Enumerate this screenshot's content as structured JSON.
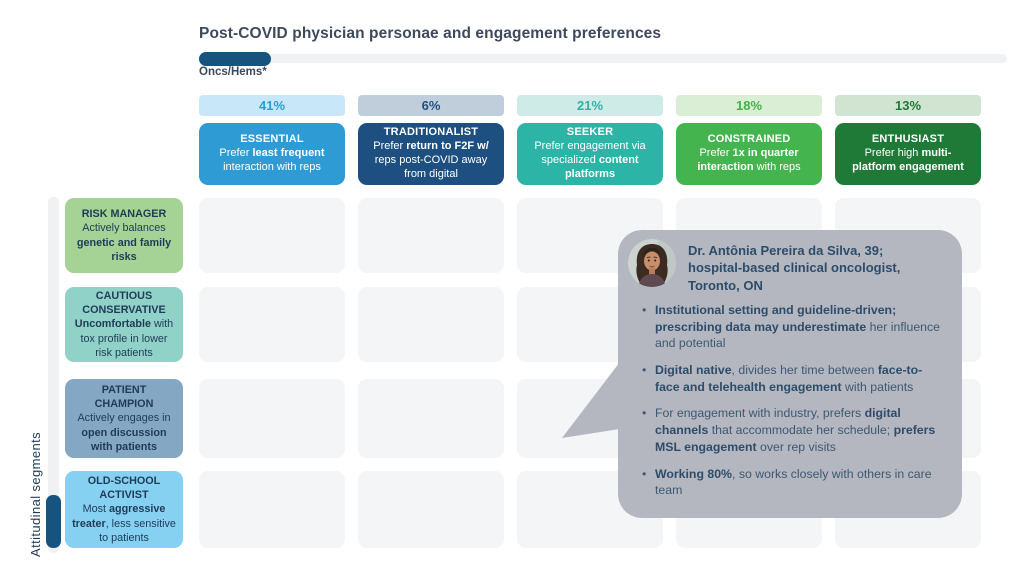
{
  "title": "Post-COVID physician personae and engagement preferences",
  "specialty_tab": {
    "label": "Oncs/Hems*"
  },
  "y_axis": {
    "label": "Attitudinal segments"
  },
  "personas": {
    "columns": [
      {
        "key": "essential",
        "percent": "41%",
        "name": "ESSENTIAL",
        "pref": [
          [
            "Prefer ",
            0
          ],
          [
            "least frequent",
            1
          ],
          [
            " interaction with reps",
            0
          ]
        ],
        "pill_bg": "#c8e7f9",
        "pill_text": "#2f9bd4",
        "card_bg": "#2f9bd4"
      },
      {
        "key": "traditionalist",
        "percent": "6%",
        "name": "TRADITIONALIST",
        "pref": [
          [
            "Prefer ",
            0
          ],
          [
            "return to F2F w/",
            1
          ],
          [
            " reps post-COVID away from digital",
            0
          ]
        ],
        "pill_bg": "#c0cdda",
        "pill_text": "#1d5080",
        "card_bg": "#1d5080"
      },
      {
        "key": "seeker",
        "percent": "21%",
        "name": "SEEKER",
        "pref": [
          [
            "Prefer engagement via specialized ",
            0
          ],
          [
            "content platforms",
            1
          ]
        ],
        "pill_bg": "#cfebe7",
        "pill_text": "#2cb4a7",
        "card_bg": "#2cb4a7"
      },
      {
        "key": "constrained",
        "percent": "18%",
        "name": "CONSTRAINED",
        "pref": [
          [
            "Prefer ",
            0
          ],
          [
            "1x in quarter interaction",
            1
          ],
          [
            " with reps",
            0
          ]
        ],
        "pill_bg": "#d9eed4",
        "pill_text": "#43b14c",
        "card_bg": "#44b54e"
      },
      {
        "key": "enthusiast",
        "percent": "13%",
        "name": "ENTHUSIAST",
        "pref": [
          [
            "Prefer high ",
            0
          ],
          [
            "multi-platform engagement",
            1
          ]
        ],
        "pill_bg": "#d0e4d1",
        "pill_text": "#1f7a37",
        "card_bg": "#1f7a37"
      }
    ]
  },
  "segments": {
    "rows": [
      {
        "key": "risk-manager",
        "name": "RISK MANAGER",
        "desc": [
          [
            "Actively balances ",
            0
          ],
          [
            "genetic and family risks",
            1
          ]
        ],
        "bg": "#a5d295"
      },
      {
        "key": "cautious-conservative",
        "name": "CAUTIOUS CONSERVATIVE",
        "desc": [
          [
            "Uncomfortable",
            1
          ],
          [
            " with tox profile in lower risk patients",
            0
          ]
        ],
        "bg": "#90d2c7"
      },
      {
        "key": "patient-champion",
        "name": "PATIENT CHAMPION",
        "desc": [
          [
            "Actively engages in ",
            0
          ],
          [
            "open discussion with patients",
            1
          ]
        ],
        "bg": "#84a8c3"
      },
      {
        "key": "old-school-activist",
        "name": "OLD-SCHOOL ACTIVIST",
        "desc": [
          [
            "Most ",
            0
          ],
          [
            "aggressive treater",
            1
          ],
          [
            ", less sensitive to patients",
            0
          ]
        ],
        "bg": "#86d1f1"
      }
    ]
  },
  "callout": {
    "bg": "#b4b7c0",
    "header": "Dr. Antônia Pereira da Silva, 39;\nhospital-based clinical oncologist,\nToronto, ON",
    "bullets": [
      [
        [
          "Institutional setting and guideline-driven; prescribing data may underestimate",
          1
        ],
        [
          " her influence and potential",
          0
        ]
      ],
      [
        [
          "Digital native",
          1
        ],
        [
          ", divides her time between ",
          0
        ],
        [
          "face-to-face and telehealth engagement",
          1
        ],
        [
          " with patients",
          0
        ]
      ],
      [
        [
          "For engagement with industry, prefers ",
          0
        ],
        [
          "digital channels",
          1
        ],
        [
          " that accommodate her schedule; ",
          0
        ],
        [
          "prefers MSL engagement",
          1
        ],
        [
          " over rep visits",
          0
        ]
      ],
      [
        [
          "Working 80%",
          1
        ],
        [
          ", so works closely with others in care team",
          0
        ]
      ]
    ]
  },
  "colors": {
    "text_dark": "#3d4a5c",
    "label_navy": "#1f3b57",
    "track": "#f0f1f3",
    "indicator": "#16537f",
    "cell": "#f4f5f6",
    "callout_text": "#3c5872",
    "callout_bold": "#2d4c6a"
  }
}
